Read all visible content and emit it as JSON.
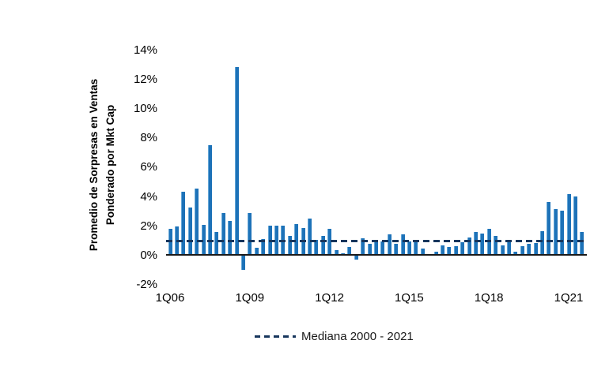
{
  "y_axis": {
    "title_line1": "Promedio de Sorpresas en Ventas",
    "title_line2": "Ponderado por Mkt Cap",
    "tick_values": [
      14,
      12,
      10,
      8,
      6,
      4,
      2,
      0,
      -2
    ],
    "tick_labels": [
      "14%",
      "12%",
      "10%",
      "8%",
      "6%",
      "4%",
      "2%",
      "0%",
      "-2%"
    ]
  },
  "x_axis": {
    "shown_tick_labels": [
      "1Q06",
      "1Q09",
      "1Q12",
      "1Q15",
      "1Q18",
      "1Q21"
    ],
    "shown_tick_every_n": 12
  },
  "legend": {
    "label": "Mediana 2000 - 2021"
  },
  "colors": {
    "bar_fill": "#1d72b8",
    "bar_edge": "#62a5d6",
    "median_line": "#17365d",
    "axis": "#1a1a1a",
    "text": "#000000",
    "background": "#ffffff"
  },
  "chart_data": {
    "type": "bar",
    "title": "",
    "ylabel": "Promedio de Sorpresas en Ventas Ponderado por Mkt Cap",
    "xlabel": "",
    "ylim": [
      -2,
      14
    ],
    "grid": false,
    "legend_position": "bottom-center",
    "unit": "%",
    "categories": [
      "1Q06",
      "2Q06",
      "3Q06",
      "4Q06",
      "1Q07",
      "2Q07",
      "3Q07",
      "4Q07",
      "1Q08",
      "2Q08",
      "3Q08",
      "4Q08",
      "1Q09",
      "2Q09",
      "3Q09",
      "4Q09",
      "1Q10",
      "2Q10",
      "3Q10",
      "4Q10",
      "1Q11",
      "2Q11",
      "3Q11",
      "4Q11",
      "1Q12",
      "2Q12",
      "3Q12",
      "4Q12",
      "1Q13",
      "2Q13",
      "3Q13",
      "4Q13",
      "1Q14",
      "2Q14",
      "3Q14",
      "4Q14",
      "1Q15",
      "2Q15",
      "3Q15",
      "4Q15",
      "1Q16",
      "2Q16",
      "3Q16",
      "4Q16",
      "1Q17",
      "2Q17",
      "3Q17",
      "4Q17",
      "1Q18",
      "2Q18",
      "3Q18",
      "4Q18",
      "1Q19",
      "2Q19",
      "3Q19",
      "4Q19",
      "1Q20",
      "2Q20",
      "3Q20",
      "4Q20",
      "1Q21",
      "2Q21",
      "3Q21"
    ],
    "values": [
      1.8,
      1.95,
      4.3,
      3.2,
      4.5,
      2.05,
      7.45,
      1.55,
      2.85,
      2.3,
      12.8,
      -1.0,
      2.85,
      0.5,
      1.1,
      2.0,
      2.0,
      2.0,
      1.3,
      2.1,
      1.85,
      2.5,
      1.0,
      1.3,
      1.75,
      0.3,
      0.1,
      0.55,
      -0.3,
      1.15,
      0.75,
      0.9,
      0.9,
      1.4,
      0.75,
      1.4,
      0.9,
      1.0,
      0.45,
      0.05,
      0.2,
      0.65,
      0.55,
      0.6,
      0.85,
      1.2,
      1.55,
      1.45,
      1.8,
      1.3,
      0.65,
      0.95,
      0.2,
      0.6,
      0.75,
      0.8,
      1.6,
      3.6,
      3.1,
      3.0,
      4.15,
      4.0,
      1.55
    ],
    "reference_line": {
      "name": "Mediana 2000 - 2021",
      "value": 0.95,
      "style": "dashed"
    }
  }
}
